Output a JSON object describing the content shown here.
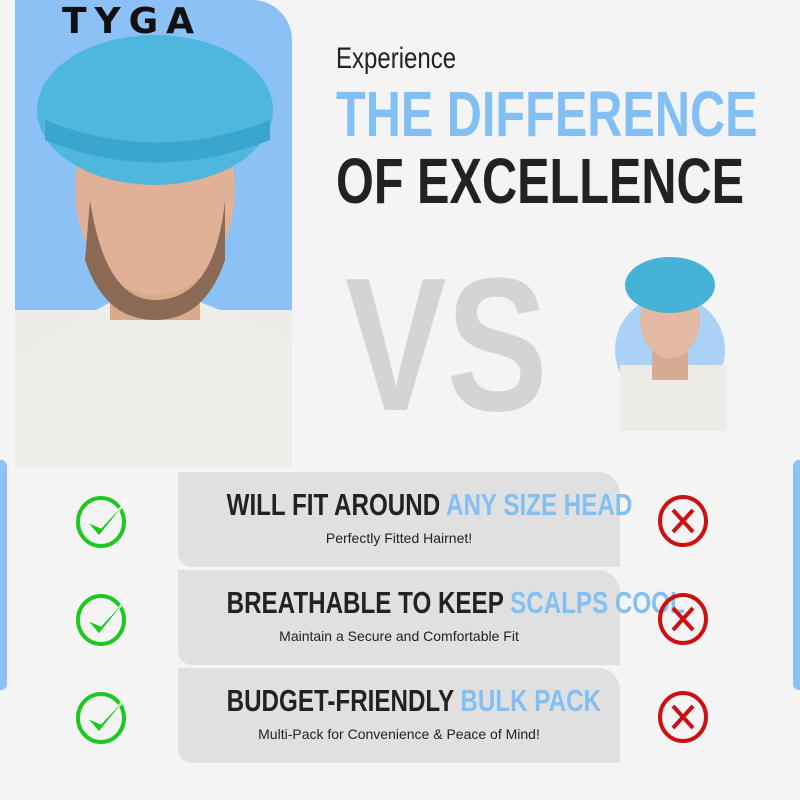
{
  "brand": {
    "logo": "TYGA",
    "accent": "#82bff4",
    "dark": "#222222"
  },
  "headline": {
    "intro": "Experience",
    "line1": "THE DIFFERENCE",
    "line2": "OF EXCELLENCE"
  },
  "versus": "VS",
  "features": [
    {
      "title_dark": "WILL FIT AROUND",
      "title_blue": "ANY SIZE HEAD",
      "subtitle": "Perfectly Fitted Hairnet!",
      "tyga": "check-icon",
      "other": "x-icon"
    },
    {
      "title_dark": "BREATHABLE TO KEEP",
      "title_blue": "SCALPS COOL",
      "subtitle": "Maintain a Secure and Comfortable Fit",
      "tyga": "check-icon",
      "other": "x-icon"
    },
    {
      "title_dark": "BUDGET-FRIENDLY",
      "title_blue": "BULK PACK",
      "subtitle": "Multi-Pack for Convenience & Peace of Mind!",
      "tyga": "check-icon",
      "other": "x-icon"
    }
  ],
  "colors": {
    "check": "#1ec81e",
    "cross": "#cc1111",
    "panel": "#8cc1f5"
  }
}
